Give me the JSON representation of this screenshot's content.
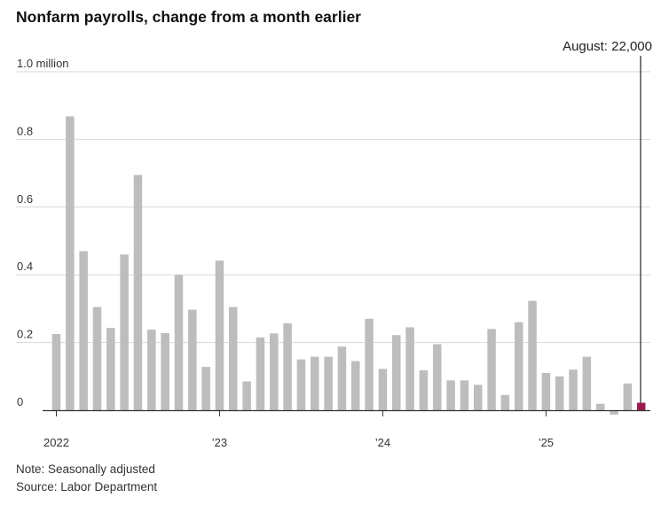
{
  "title": "Nonfarm payrolls, change from a month earlier",
  "note": "Note: Seasonally adjusted",
  "source": "Source: Labor Department",
  "colors": {
    "bar": "#bdbdbd",
    "highlight": "#9b1b4f",
    "grid": "#d9d9d9",
    "axis": "#333333",
    "text": "#333333"
  },
  "chart_data": {
    "type": "bar",
    "unit": "millions of jobs",
    "x_tick_labels": [
      "2022",
      "’23",
      "’24",
      "’25"
    ],
    "y_tick_labels": [
      "0",
      "0.2",
      "0.4",
      "0.6",
      "0.8",
      "1.0 million"
    ],
    "y_ticks": [
      0,
      0.2,
      0.4,
      0.6,
      0.8,
      1.0
    ],
    "ylim": [
      -0.02,
      1.0
    ],
    "annotation": {
      "text": "August: 22,000",
      "index": 43,
      "value": 0.022
    },
    "categories": [
      "Jan 2022",
      "Feb 2022",
      "Mar 2022",
      "Apr 2022",
      "May 2022",
      "Jun 2022",
      "Jul 2022",
      "Aug 2022",
      "Sep 2022",
      "Oct 2022",
      "Nov 2022",
      "Dec 2022",
      "Jan 2023",
      "Feb 2023",
      "Mar 2023",
      "Apr 2023",
      "May 2023",
      "Jun 2023",
      "Jul 2023",
      "Aug 2023",
      "Sep 2023",
      "Oct 2023",
      "Nov 2023",
      "Dec 2023",
      "Jan 2024",
      "Feb 2024",
      "Mar 2024",
      "Apr 2024",
      "May 2024",
      "Jun 2024",
      "Jul 2024",
      "Aug 2024",
      "Sep 2024",
      "Oct 2024",
      "Nov 2024",
      "Dec 2024",
      "Jan 2025",
      "Feb 2025",
      "Mar 2025",
      "Apr 2025",
      "May 2025",
      "Jun 2025",
      "Jul 2025",
      "Aug 2025"
    ],
    "values": [
      0.225,
      0.868,
      0.47,
      0.305,
      0.243,
      0.46,
      0.695,
      0.238,
      0.228,
      0.4,
      0.297,
      0.128,
      0.442,
      0.305,
      0.085,
      0.215,
      0.227,
      0.257,
      0.15,
      0.158,
      0.158,
      0.188,
      0.145,
      0.27,
      0.122,
      0.222,
      0.245,
      0.118,
      0.195,
      0.088,
      0.088,
      0.075,
      0.24,
      0.045,
      0.26,
      0.323,
      0.11,
      0.1,
      0.12,
      0.158,
      0.019,
      -0.013,
      0.079,
      0.022
    ]
  }
}
